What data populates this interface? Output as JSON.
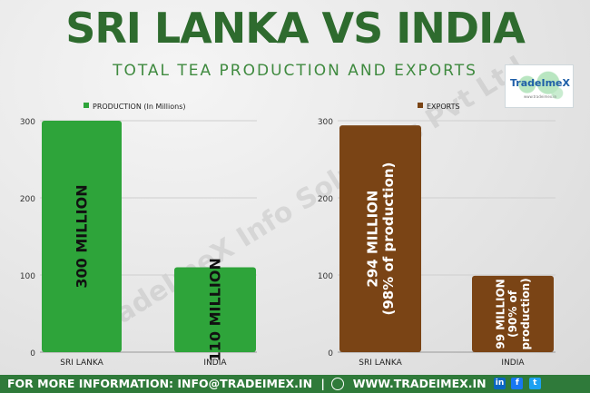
{
  "header": {
    "title": "SRI LANKA VS INDIA",
    "subtitle": "TOTAL TEA PRODUCTION AND EXPORTS"
  },
  "logo": {
    "name": "TradeImeX",
    "tagline": "www.tradeimex.in"
  },
  "watermark": "TradeImeX Info Solutions Pvt Ltd",
  "colors": {
    "title": "#2e6b2e",
    "production": "#2ea43a",
    "exports": "#7a4415",
    "footer": "#2f7a3a"
  },
  "chart_data": [
    {
      "type": "bar",
      "categories": [
        "SRI LANKA",
        "INDIA"
      ],
      "series": [
        {
          "name": "PRODUCTION (In Millions)",
          "values": [
            300,
            110
          ]
        }
      ],
      "data_labels": [
        "300 MILLION",
        "110 MILLION"
      ],
      "yticks": [
        "0",
        "100",
        "200",
        "300"
      ],
      "ylim": [
        0,
        300
      ],
      "legend": "top-left",
      "grid": true
    },
    {
      "type": "bar",
      "categories": [
        "SRI LANKA",
        "INDIA"
      ],
      "series": [
        {
          "name": "EXPORTS",
          "values": [
            294,
            99
          ]
        }
      ],
      "data_labels": [
        [
          "294 MILLION",
          "(98% of production)"
        ],
        [
          "99 MILLION",
          "(90% of",
          "production)"
        ]
      ],
      "yticks": [
        "0",
        "100",
        "200",
        "300"
      ],
      "ylim": [
        0,
        300
      ],
      "legend": "top-left",
      "grid": true
    }
  ],
  "footer": {
    "info_label": "FOR MORE INFORMATION: INFO@TRADEIMEX.IN",
    "separator": "|",
    "globe_icon": "globe-icon",
    "website": "WWW.TRADEIMEX.IN",
    "social": [
      "in",
      "f",
      "t"
    ]
  }
}
